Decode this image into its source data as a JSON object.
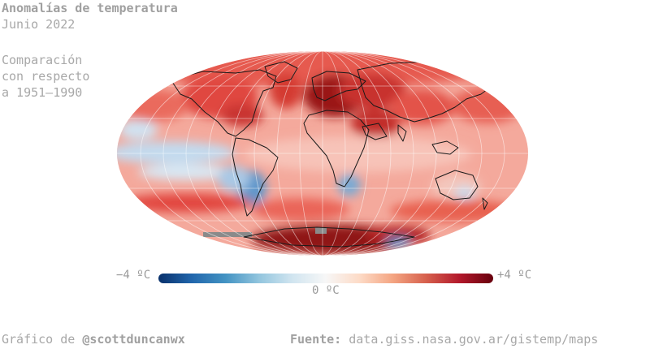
{
  "header": {
    "title": "Anomalías de temperatura",
    "subtitle": "Junio 2022",
    "comparison_lines": [
      "Comparación",
      "con respecto",
      "a 1951–1990"
    ]
  },
  "map": {
    "projection": "mollweide",
    "colors": {
      "strong_warm": "#9c1a1c",
      "warm": "#e2473f",
      "mild_warm": "#f6b6aa",
      "neutral": "#f6f6f6",
      "mild_cool": "#c7dcef",
      "cool": "#5e97cb",
      "missing": "#8a8a8a",
      "coast": "#1a1a1a"
    }
  },
  "legend": {
    "min_label": "−4 ºC",
    "max_label": "+4 ºC",
    "mid_label": "0 ºC",
    "min_value": -4,
    "max_value": 4,
    "stops": [
      "#08306b",
      "#2166ac",
      "#4393c3",
      "#92c5de",
      "#d1e5f0",
      "#f7f7f7",
      "#fddbc7",
      "#f4a582",
      "#d6604d",
      "#b2182b",
      "#67000d"
    ]
  },
  "footer": {
    "credit_prefix": "Gráfico de",
    "credit_handle": "@scottduncanwx",
    "source_label": "Fuente:",
    "source_url": "data.giss.nasa.gov.ar/gistemp/maps"
  }
}
